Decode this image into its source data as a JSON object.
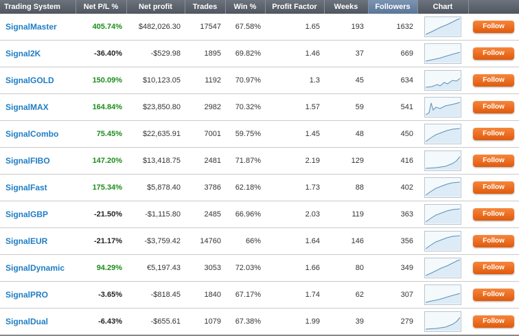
{
  "headers": {
    "system": "Trading System",
    "pl": "Net P/L %",
    "profit": "Net profit",
    "trades": "Trades",
    "win": "Win %",
    "pf": "Profit Factor",
    "weeks": "Weeks",
    "followers": "Followers",
    "chart": "Chart"
  },
  "follow_label": "Follow",
  "colors": {
    "positive": "#1a8c1a",
    "negative": "#222222",
    "link": "#1f7dc4",
    "button": "#f06a1c"
  },
  "rows": [
    {
      "name": "SignalMaster",
      "pl": "405.74%",
      "pl_sign": "pos",
      "profit": "$482,026.30",
      "trades": "17547",
      "win": "67.58%",
      "pf": "1.65",
      "weeks": "193",
      "followers": "1632",
      "spark": "rise"
    },
    {
      "name": "Signal2K",
      "pl": "-36.40%",
      "pl_sign": "neg",
      "profit": "-$529.98",
      "trades": "1895",
      "win": "69.82%",
      "pf": "1.46",
      "weeks": "37",
      "followers": "669",
      "spark": "gentle"
    },
    {
      "name": "SignalGOLD",
      "pl": "150.09%",
      "pl_sign": "pos",
      "profit": "$10,123.05",
      "trades": "1192",
      "win": "70.97%",
      "pf": "1.3",
      "weeks": "45",
      "followers": "634",
      "spark": "wavy"
    },
    {
      "name": "SignalMAX",
      "pl": "164.84%",
      "pl_sign": "pos",
      "profit": "$23,850.80",
      "trades": "2982",
      "win": "70.32%",
      "pf": "1.57",
      "weeks": "59",
      "followers": "541",
      "spark": "spike"
    },
    {
      "name": "SignalCombo",
      "pl": "75.45%",
      "pl_sign": "pos",
      "profit": "$22,635.91",
      "trades": "7001",
      "win": "59.75%",
      "pf": "1.45",
      "weeks": "48",
      "followers": "450",
      "spark": "curve"
    },
    {
      "name": "SignalFIBO",
      "pl": "147.20%",
      "pl_sign": "pos",
      "profit": "$13,418.75",
      "trades": "2481",
      "win": "71.87%",
      "pf": "2.19",
      "weeks": "129",
      "followers": "416",
      "spark": "late"
    },
    {
      "name": "SignalFast",
      "pl": "175.34%",
      "pl_sign": "pos",
      "profit": "$5,878.40",
      "trades": "3786",
      "win": "62.18%",
      "pf": "1.73",
      "weeks": "88",
      "followers": "402",
      "spark": "curve"
    },
    {
      "name": "SignalGBP",
      "pl": "-21.50%",
      "pl_sign": "neg",
      "profit": "-$1,115.80",
      "trades": "2485",
      "win": "66.96%",
      "pf": "2.03",
      "weeks": "119",
      "followers": "363",
      "spark": "curve"
    },
    {
      "name": "SignalEUR",
      "pl": "-21.17%",
      "pl_sign": "neg",
      "profit": "-$3,759.42",
      "trades": "14760",
      "win": "66%",
      "pf": "1.64",
      "weeks": "146",
      "followers": "356",
      "spark": "curve"
    },
    {
      "name": "SignalDynamic",
      "pl": "94.29%",
      "pl_sign": "pos",
      "profit": "€5,197.43",
      "trades": "3053",
      "win": "72.03%",
      "pf": "1.66",
      "weeks": "80",
      "followers": "349",
      "spark": "rise"
    },
    {
      "name": "SignalPRO",
      "pl": "-3.65%",
      "pl_sign": "neg",
      "profit": "-$818.45",
      "trades": "1840",
      "win": "67.17%",
      "pf": "1.74",
      "weeks": "62",
      "followers": "307",
      "spark": "gentle"
    },
    {
      "name": "SignalDual",
      "pl": "-6.43%",
      "pl_sign": "neg",
      "profit": "-$655.61",
      "trades": "1079",
      "win": "67.38%",
      "pf": "1.99",
      "weeks": "39",
      "followers": "279",
      "spark": "late"
    }
  ]
}
